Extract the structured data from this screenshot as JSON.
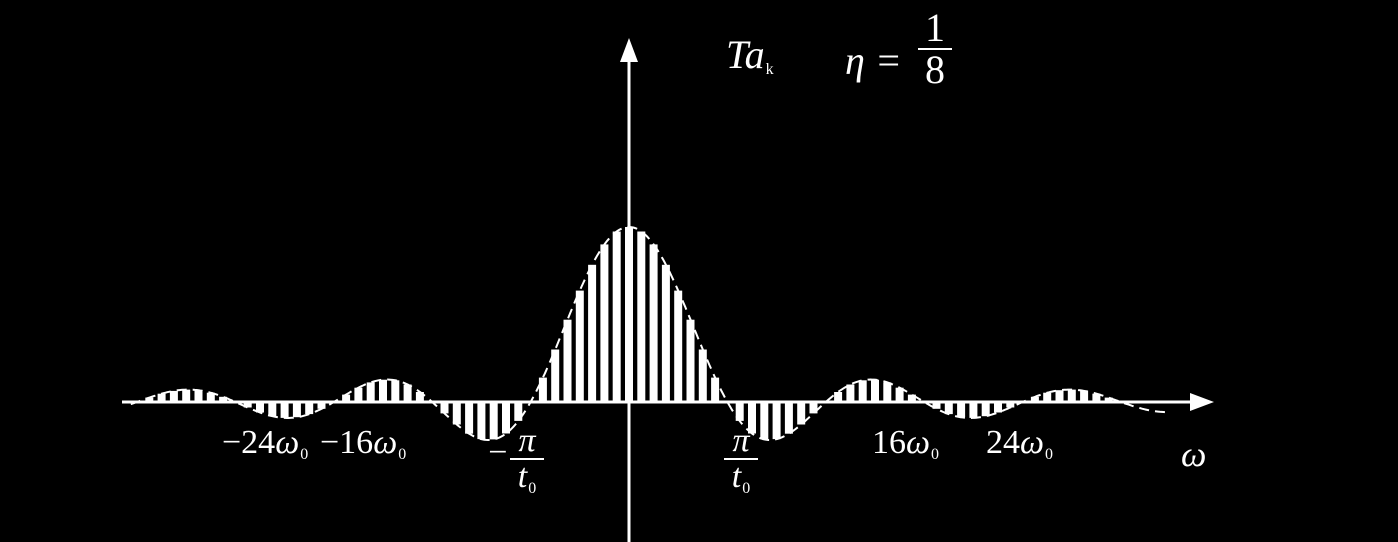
{
  "chart_data": {
    "type": "bar",
    "title_var": "Ta",
    "title_sub": "k",
    "eta_label": "η =",
    "eta_num": "1",
    "eta_den": "8",
    "xlabel": "ω",
    "xlim": [
      -40,
      40
    ],
    "ylim": [
      -0.3,
      1.05
    ],
    "k_range": [
      -40,
      40
    ],
    "eta": 0.125,
    "envelope": "sinc",
    "tick_labels": {
      "neg24": {
        "num": "−24",
        "var": "ω",
        "sub": "0"
      },
      "neg16": {
        "num": "−16",
        "var": "ω",
        "sub": "0"
      },
      "pos16": {
        "num": "16",
        "var": "ω",
        "sub": "0"
      },
      "pos24": {
        "num": "24",
        "var": "ω",
        "sub": "0"
      },
      "neg_pi_t0": {
        "sign": "−",
        "num": "π",
        "den": "t",
        "den_sub": "0"
      },
      "pos_pi_t0": {
        "num": "π",
        "den": "t",
        "den_sub": "0"
      }
    },
    "colors": {
      "background": "#000000",
      "foreground": "#ffffff"
    },
    "grid": false
  }
}
